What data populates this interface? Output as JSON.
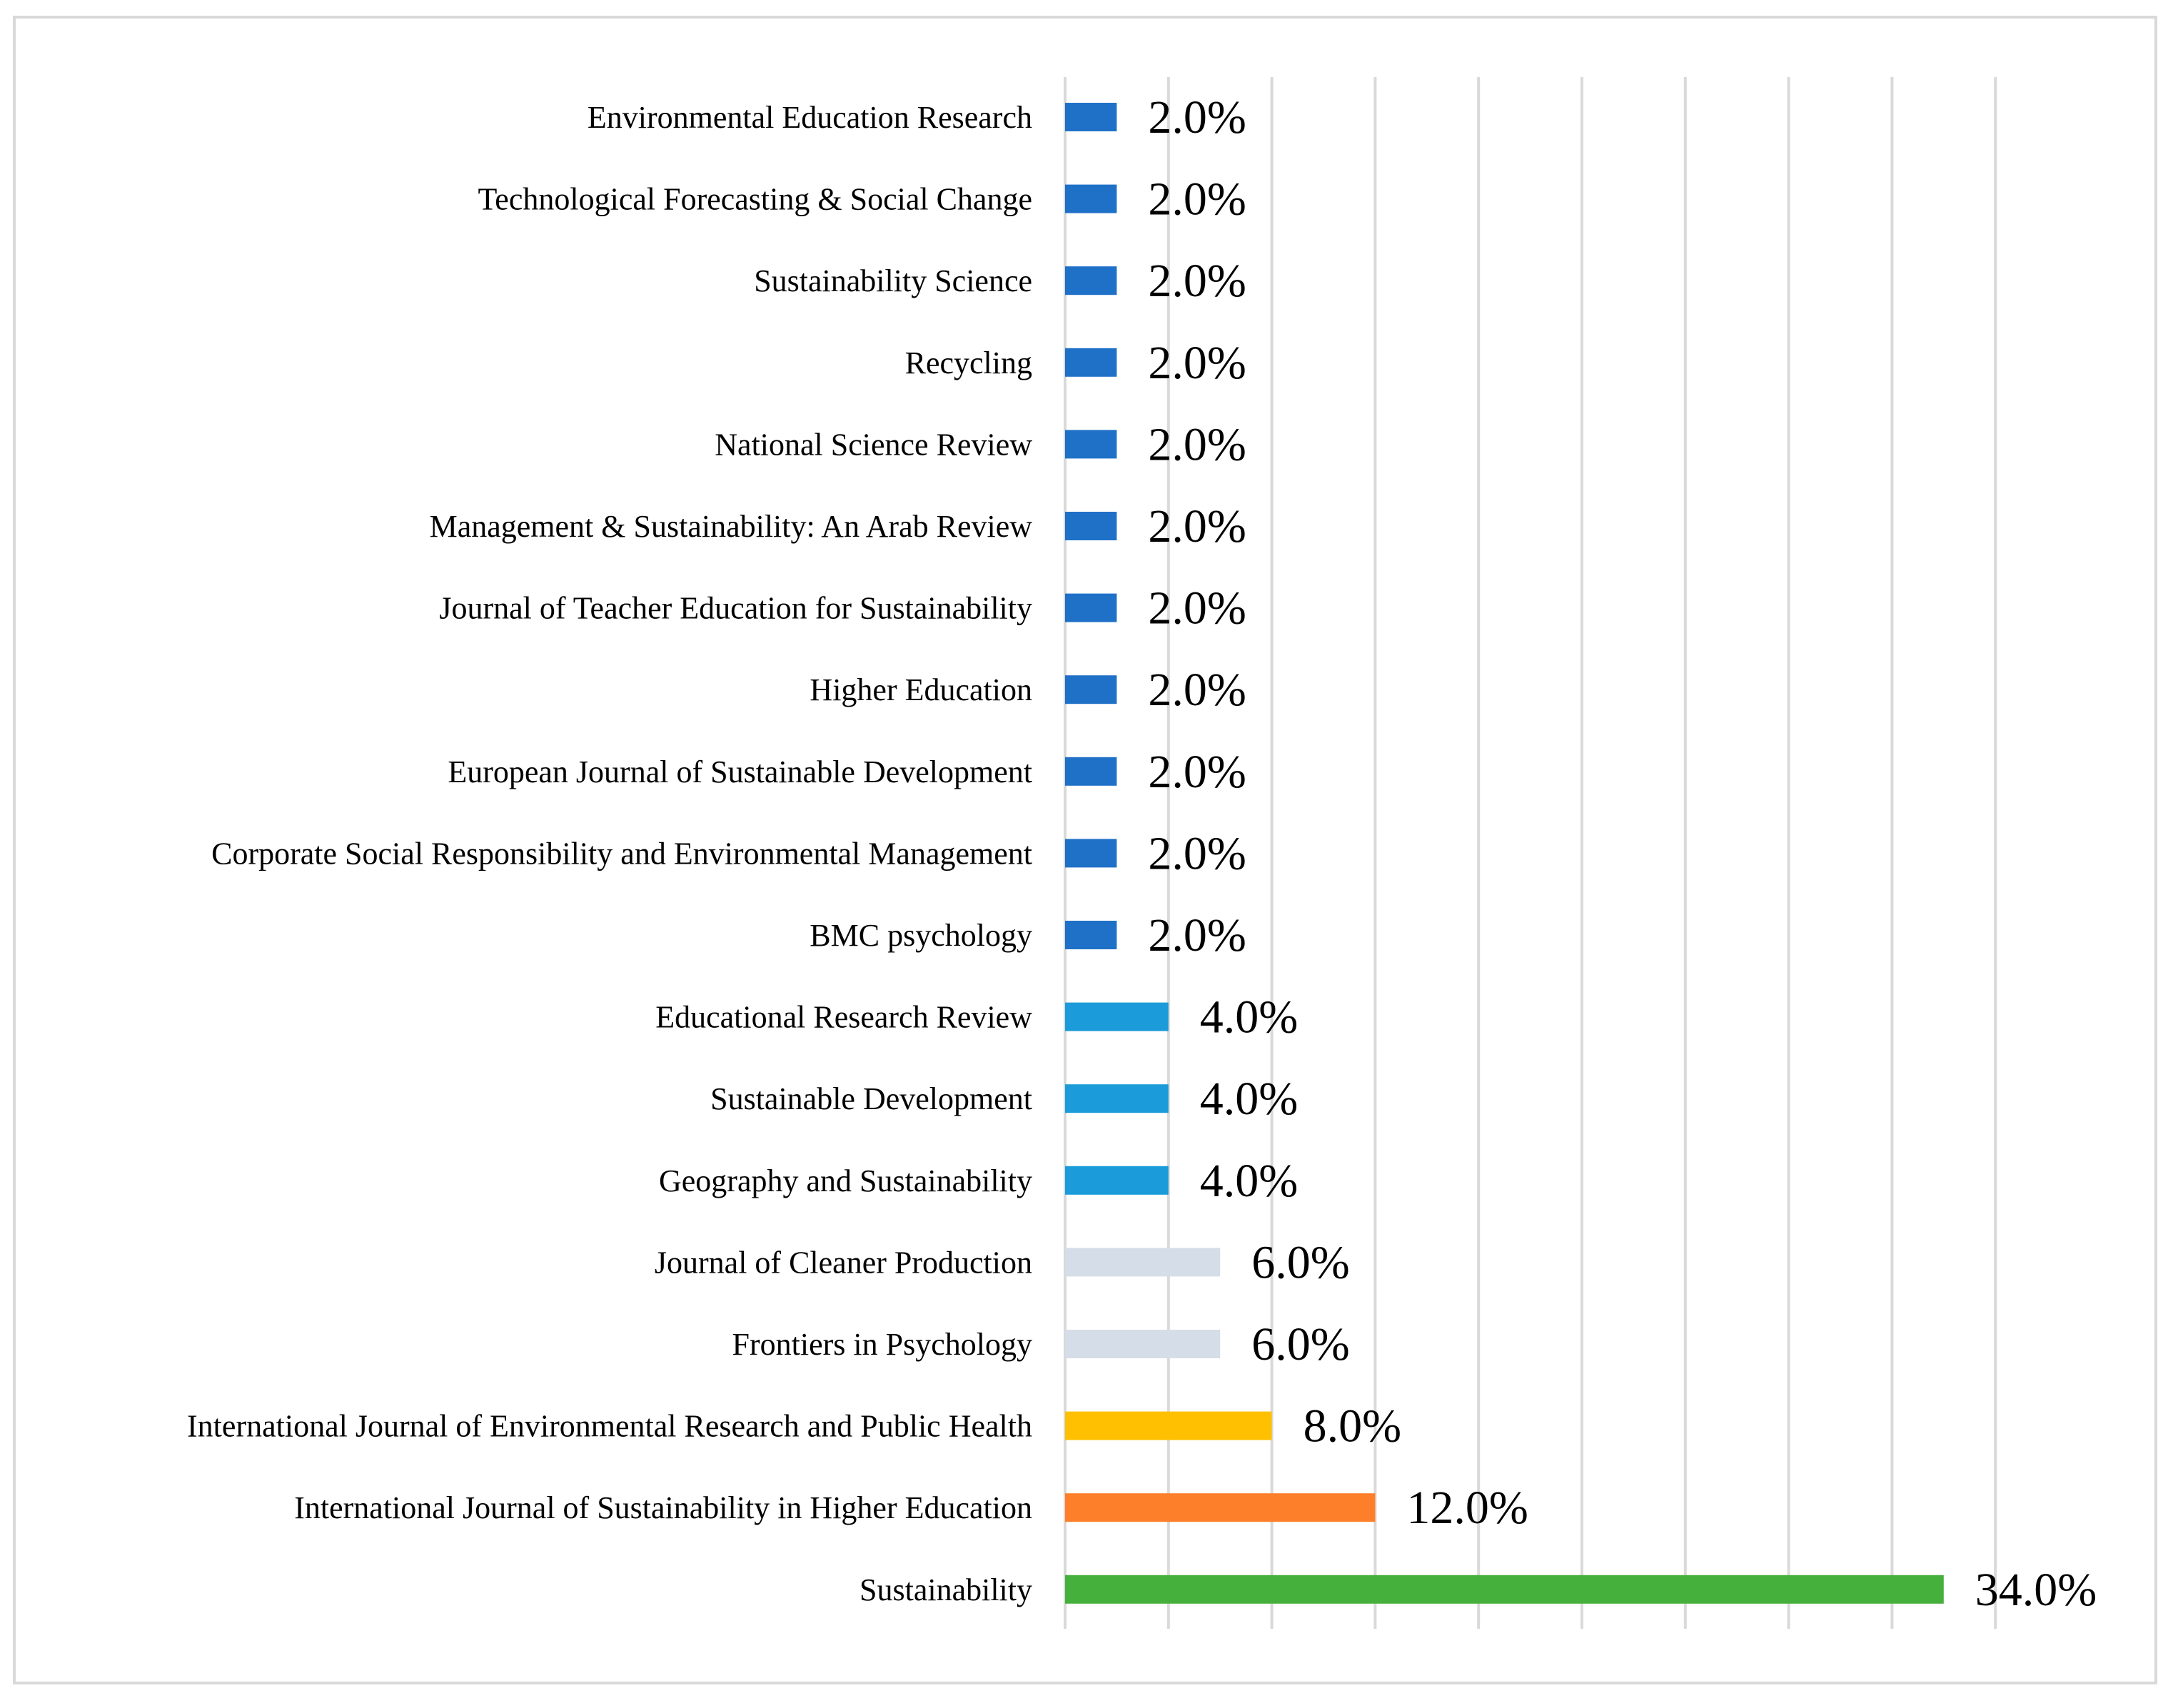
{
  "chart_data": {
    "type": "bar",
    "orientation": "horizontal",
    "title": "",
    "xlabel": "",
    "ylabel": "",
    "xlim": [
      0,
      36
    ],
    "grid_step": 4,
    "categories": [
      "Environmental Education Research",
      "Technological Forecasting & Social Change",
      "Sustainability Science",
      "Recycling",
      "National Science Review",
      "Management & Sustainability: An Arab Review",
      "Journal of Teacher Education for Sustainability",
      "Higher Education",
      "European Journal of Sustainable Development",
      "Corporate Social Responsibility and Environmental Management",
      "BMC psychology",
      "Educational Research Review",
      "Sustainable Development",
      "Geography and Sustainability",
      "Journal of Cleaner Production",
      "Frontiers in Psychology",
      "International Journal of Environmental Research and Public Health",
      "International Journal of Sustainability in Higher Education",
      "Sustainability"
    ],
    "values": [
      2.0,
      2.0,
      2.0,
      2.0,
      2.0,
      2.0,
      2.0,
      2.0,
      2.0,
      2.0,
      2.0,
      4.0,
      4.0,
      4.0,
      6.0,
      6.0,
      8.0,
      12.0,
      34.0
    ],
    "value_labels": [
      "2.0%",
      "2.0%",
      "2.0%",
      "2.0%",
      "2.0%",
      "2.0%",
      "2.0%",
      "2.0%",
      "2.0%",
      "2.0%",
      "2.0%",
      "4.0%",
      "4.0%",
      "4.0%",
      "6.0%",
      "6.0%",
      "8.0%",
      "12.0%",
      "34.0%"
    ],
    "colors": [
      "#1f70c7",
      "#1f70c7",
      "#1f70c7",
      "#1f70c7",
      "#1f70c7",
      "#1f70c7",
      "#1f70c7",
      "#1f70c7",
      "#1f70c7",
      "#1f70c7",
      "#1f70c7",
      "#1b9bd9",
      "#1b9bd9",
      "#1b9bd9",
      "#d5dde8",
      "#d5dde8",
      "#fec000",
      "#fd7f2a",
      "#46b03c"
    ],
    "grid": true,
    "legend": "none"
  }
}
